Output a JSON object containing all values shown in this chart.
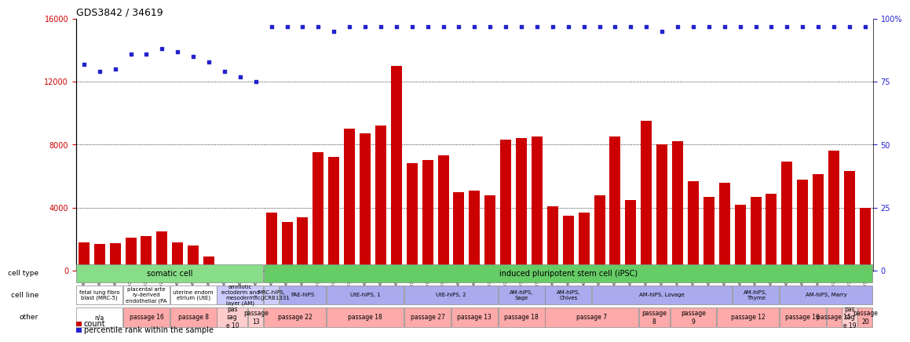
{
  "title": "GDS3842 / 34619",
  "samples": [
    "GSM520665",
    "GSM520666",
    "GSM520667",
    "GSM520704",
    "GSM520705",
    "GSM520711",
    "GSM520692",
    "GSM520693",
    "GSM520694",
    "GSM520689",
    "GSM520690",
    "GSM520691",
    "GSM520668",
    "GSM520669",
    "GSM520670",
    "GSM520713",
    "GSM520714",
    "GSM520715",
    "GSM520695",
    "GSM520696",
    "GSM520697",
    "GSM520709",
    "GSM520710",
    "GSM520712",
    "GSM520698",
    "GSM520699",
    "GSM520700",
    "GSM520701",
    "GSM520702",
    "GSM520703",
    "GSM520671",
    "GSM520672",
    "GSM520673",
    "GSM520681",
    "GSM520682",
    "GSM520680",
    "GSM520677",
    "GSM520678",
    "GSM520679",
    "GSM520674",
    "GSM520675",
    "GSM520676",
    "GSM520686",
    "GSM520687",
    "GSM520688",
    "GSM520683",
    "GSM520684",
    "GSM520685",
    "GSM520708",
    "GSM520706",
    "GSM520707"
  ],
  "counts": [
    1800,
    1700,
    1750,
    2100,
    2200,
    2500,
    1800,
    1600,
    900,
    300,
    100,
    100,
    3700,
    3100,
    3400,
    7500,
    7200,
    9000,
    8700,
    9200,
    13000,
    6800,
    7000,
    7300,
    5000,
    5100,
    4800,
    8300,
    8400,
    8500,
    4100,
    3500,
    3700,
    4800,
    8500,
    4500,
    9500,
    8000,
    8200,
    5700,
    4700,
    5600,
    4200,
    4700,
    4900,
    6900,
    5800,
    6100,
    7600,
    6300,
    4000
  ],
  "percentile": [
    82,
    79,
    80,
    86,
    86,
    88,
    87,
    85,
    83,
    79,
    77,
    75,
    97,
    97,
    97,
    97,
    95,
    97,
    97,
    97,
    97,
    97,
    97,
    97,
    97,
    97,
    97,
    97,
    97,
    97,
    97,
    97,
    97,
    97,
    97,
    97,
    97,
    95,
    97,
    97,
    97,
    97,
    97,
    97,
    97,
    97,
    97,
    97,
    97,
    97,
    97
  ],
  "ylim_left": [
    0,
    16000
  ],
  "ylim_right": [
    0,
    100
  ],
  "yticks_left": [
    0,
    4000,
    8000,
    12000,
    16000
  ],
  "yticks_right": [
    0,
    25,
    50,
    75,
    100
  ],
  "bar_color": "#cc0000",
  "dot_color": "#2222cc",
  "background_color": "#ffffff",
  "cell_type_groups": [
    {
      "label": "somatic cell",
      "start": 0,
      "end": 11,
      "color": "#88dd88"
    },
    {
      "label": "induced pluripotent stem cell (iPSC)",
      "start": 12,
      "end": 50,
      "color": "#66cc66"
    }
  ],
  "cell_line_groups": [
    {
      "label": "fetal lung fibro\nblast (MRC-5)",
      "start": 0,
      "end": 2,
      "color": "#ffffff"
    },
    {
      "label": "placental arte\nry-derived\nendothelial (PA",
      "start": 3,
      "end": 5,
      "color": "#ffffff"
    },
    {
      "label": "uterine endom\netrium (UtE)",
      "start": 6,
      "end": 8,
      "color": "#ffffff"
    },
    {
      "label": "amniotic\nectoderm and\nmesoderm\nlayer (AM)",
      "start": 9,
      "end": 11,
      "color": "#ccccff"
    },
    {
      "label": "MRC-hiPS,\nTic(JCRB1331",
      "start": 12,
      "end": 12,
      "color": "#ccccff"
    },
    {
      "label": "PAE-hiPS",
      "start": 13,
      "end": 15,
      "color": "#aaaaee"
    },
    {
      "label": "UtE-hiPS, 1",
      "start": 16,
      "end": 20,
      "color": "#aaaaee"
    },
    {
      "label": "UtE-hiPS, 2",
      "start": 21,
      "end": 26,
      "color": "#aaaaee"
    },
    {
      "label": "AM-hiPS,\nSage",
      "start": 27,
      "end": 29,
      "color": "#aaaaee"
    },
    {
      "label": "AM-hiPS,\nChives",
      "start": 30,
      "end": 32,
      "color": "#aaaaee"
    },
    {
      "label": "AM-hiPS, Lovage",
      "start": 33,
      "end": 41,
      "color": "#aaaaee"
    },
    {
      "label": "AM-hiPS,\nThyme",
      "start": 42,
      "end": 44,
      "color": "#aaaaee"
    },
    {
      "label": "AM-hiPS, Marry",
      "start": 45,
      "end": 50,
      "color": "#aaaaee"
    }
  ],
  "other_groups": [
    {
      "label": "n/a",
      "start": 0,
      "end": 2,
      "color": "#ffffff"
    },
    {
      "label": "passage 16",
      "start": 3,
      "end": 5,
      "color": "#ffaaaa"
    },
    {
      "label": "passage 8",
      "start": 6,
      "end": 8,
      "color": "#ffaaaa"
    },
    {
      "label": "pas\nsag\ne 10",
      "start": 9,
      "end": 10,
      "color": "#ffcccc"
    },
    {
      "label": "passage\n13",
      "start": 11,
      "end": 11,
      "color": "#ffcccc"
    },
    {
      "label": "passage 22",
      "start": 12,
      "end": 15,
      "color": "#ffaaaa"
    },
    {
      "label": "passage 18",
      "start": 16,
      "end": 20,
      "color": "#ffaaaa"
    },
    {
      "label": "passage 27",
      "start": 21,
      "end": 23,
      "color": "#ffaaaa"
    },
    {
      "label": "passage 13",
      "start": 24,
      "end": 26,
      "color": "#ffaaaa"
    },
    {
      "label": "passage 18",
      "start": 27,
      "end": 29,
      "color": "#ffaaaa"
    },
    {
      "label": "passage 7",
      "start": 30,
      "end": 35,
      "color": "#ffaaaa"
    },
    {
      "label": "passage\n8",
      "start": 36,
      "end": 37,
      "color": "#ffaaaa"
    },
    {
      "label": "passage\n9",
      "start": 38,
      "end": 40,
      "color": "#ffaaaa"
    },
    {
      "label": "passage 12",
      "start": 41,
      "end": 44,
      "color": "#ffaaaa"
    },
    {
      "label": "passage 16",
      "start": 45,
      "end": 47,
      "color": "#ffaaaa"
    },
    {
      "label": "passage 15",
      "start": 48,
      "end": 48,
      "color": "#ffaaaa"
    },
    {
      "label": "pas\nsag\ne 19",
      "start": 49,
      "end": 49,
      "color": "#ffcccc"
    },
    {
      "label": "passage\n20",
      "start": 50,
      "end": 50,
      "color": "#ffaaaa"
    }
  ]
}
